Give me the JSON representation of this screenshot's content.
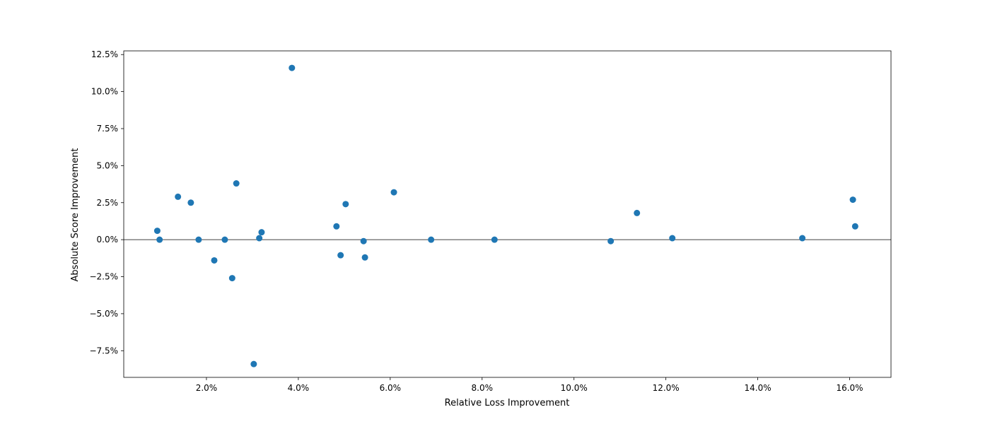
{
  "chart_data": {
    "type": "scatter",
    "title": "",
    "xlabel": "Relative Loss Improvement",
    "ylabel": "Absolute Score Improvement",
    "xlim": [
      0.2,
      16.9
    ],
    "ylim": [
      -9.3,
      12.75
    ],
    "xticks": [
      2,
      4,
      6,
      8,
      10,
      12,
      14,
      16
    ],
    "xtick_labels": [
      "2.0%",
      "4.0%",
      "6.0%",
      "8.0%",
      "10.0%",
      "12.0%",
      "14.0%",
      "16.0%"
    ],
    "yticks": [
      -7.5,
      -5,
      -2.5,
      0,
      2.5,
      5,
      7.5,
      10,
      12.5
    ],
    "ytick_labels": [
      "−7.5%",
      "−5.0%",
      "−2.5%",
      "0.0%",
      "2.5%",
      "5.0%",
      "7.5%",
      "10.0%",
      "12.5%"
    ],
    "reference_line_y": 0,
    "grid": false,
    "point_color": "#1f77b4",
    "points": [
      {
        "x": 0.93,
        "y": 0.6
      },
      {
        "x": 0.98,
        "y": 0.0
      },
      {
        "x": 1.38,
        "y": 2.9
      },
      {
        "x": 1.66,
        "y": 2.5
      },
      {
        "x": 1.83,
        "y": 0.0
      },
      {
        "x": 2.17,
        "y": -1.4
      },
      {
        "x": 2.4,
        "y": 0.0
      },
      {
        "x": 2.56,
        "y": -2.6
      },
      {
        "x": 2.65,
        "y": 3.8
      },
      {
        "x": 3.03,
        "y": -8.4
      },
      {
        "x": 3.15,
        "y": 0.1
      },
      {
        "x": 3.2,
        "y": 0.5
      },
      {
        "x": 3.86,
        "y": 11.6
      },
      {
        "x": 4.83,
        "y": 0.9
      },
      {
        "x": 4.92,
        "y": -1.05
      },
      {
        "x": 5.03,
        "y": 2.4
      },
      {
        "x": 5.42,
        "y": -0.1
      },
      {
        "x": 5.45,
        "y": -1.2
      },
      {
        "x": 6.08,
        "y": 3.2
      },
      {
        "x": 6.89,
        "y": 0.0
      },
      {
        "x": 8.27,
        "y": 0.0
      },
      {
        "x": 10.8,
        "y": -0.1
      },
      {
        "x": 11.37,
        "y": 1.8
      },
      {
        "x": 12.14,
        "y": 0.1
      },
      {
        "x": 14.97,
        "y": 0.1
      },
      {
        "x": 16.07,
        "y": 2.7
      },
      {
        "x": 16.12,
        "y": 0.9
      }
    ]
  }
}
